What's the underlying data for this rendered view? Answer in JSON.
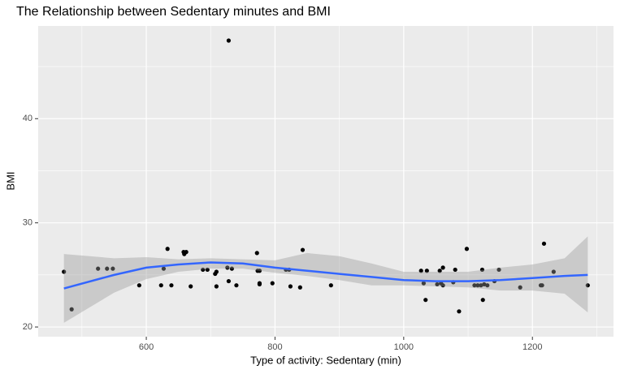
{
  "chart_data": {
    "type": "scatter",
    "title": "The Relationship between Sedentary minutes and BMI",
    "x_label": "Type of activity: Sedentary (min)",
    "y_label": "BMI",
    "xlim": [
      432,
      1326
    ],
    "ylim": [
      19.07,
      48.9
    ],
    "xticks": [
      600,
      800,
      1000,
      1200
    ],
    "yticks": [
      20,
      30,
      40
    ],
    "x_minor_grid": [
      500,
      700,
      900,
      1100,
      1300
    ],
    "y_minor_grid": [
      25,
      35,
      45
    ],
    "grid": true,
    "point_color": "#000000",
    "x": [
      472,
      484,
      525,
      539,
      548,
      589,
      623,
      627,
      633,
      639,
      658,
      659,
      662,
      669,
      688,
      695,
      707,
      709,
      709,
      726,
      728,
      728,
      733,
      740,
      772,
      773,
      776,
      776,
      776,
      796,
      817,
      822,
      824,
      839,
      843,
      887,
      1027,
      1031,
      1034,
      1036,
      1052,
      1056,
      1058,
      1061,
      1061,
      1077,
      1080,
      1086,
      1098,
      1110,
      1115,
      1120,
      1122,
      1123,
      1125,
      1130,
      1141,
      1148,
      1181,
      1213,
      1215,
      1218,
      1233,
      1286
    ],
    "y": [
      25.3,
      21.7,
      25.6,
      25.6,
      25.6,
      24.0,
      24.0,
      25.6,
      27.5,
      24.0,
      27.2,
      27.0,
      27.2,
      23.9,
      25.5,
      25.5,
      25.1,
      25.3,
      23.9,
      25.7,
      24.4,
      47.5,
      25.6,
      24.0,
      27.1,
      25.4,
      25.4,
      24.2,
      24.1,
      24.2,
      25.5,
      25.5,
      23.9,
      23.8,
      27.4,
      24.0,
      25.4,
      24.2,
      22.6,
      25.4,
      24.1,
      25.4,
      24.2,
      25.7,
      24.0,
      24.3,
      25.5,
      21.5,
      27.5,
      24.0,
      24.0,
      24.0,
      25.5,
      22.6,
      24.1,
      24.0,
      24.4,
      25.5,
      23.8,
      24.0,
      24.0,
      28.0,
      25.3,
      24.0
    ],
    "smooth": {
      "color": "#3366ff",
      "band_color": "#999999",
      "x": [
        472,
        550,
        600,
        650,
        700,
        750,
        800,
        850,
        900,
        950,
        1000,
        1050,
        1100,
        1150,
        1200,
        1250,
        1286
      ],
      "y": [
        23.7,
        25.0,
        25.7,
        26.0,
        26.2,
        26.1,
        25.7,
        25.4,
        25.1,
        24.8,
        24.5,
        24.4,
        24.4,
        24.5,
        24.7,
        24.9,
        25.0
      ],
      "ymin": [
        20.4,
        23.3,
        24.6,
        25.3,
        25.6,
        25.6,
        25.2,
        24.9,
        24.5,
        24.0,
        24.0,
        23.9,
        23.8,
        23.5,
        23.5,
        23.2,
        21.4
      ],
      "ymax": [
        27.0,
        26.6,
        26.7,
        26.5,
        26.6,
        26.5,
        26.4,
        27.1,
        26.8,
        26.1,
        25.3,
        25.3,
        25.3,
        25.7,
        26.0,
        26.6,
        28.7
      ]
    }
  }
}
